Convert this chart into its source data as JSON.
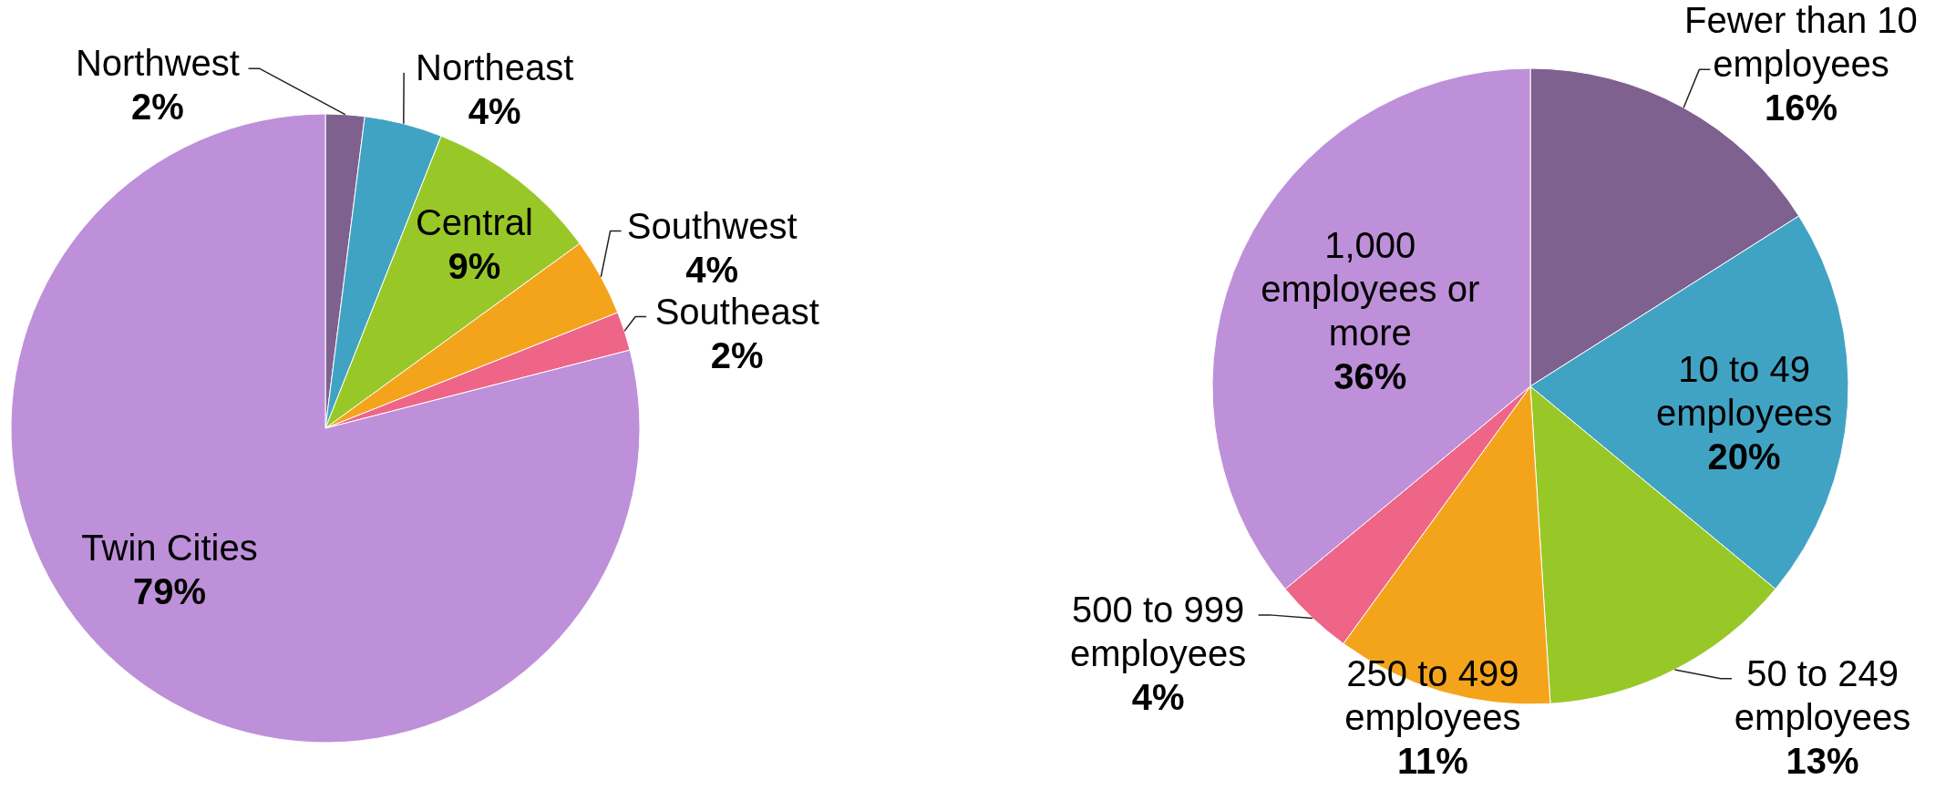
{
  "chart_data": [
    {
      "type": "pie",
      "categories": [
        "Northwest",
        "Northeast",
        "Central",
        "Southwest",
        "Southeast",
        "Twin Cities"
      ],
      "values": [
        2,
        4,
        9,
        4,
        2,
        79
      ],
      "value_labels": [
        "2%",
        "4%",
        "9%",
        "4%",
        "2%",
        "79%"
      ],
      "colors": [
        "#7f6190",
        "#41a3c3",
        "#98c828",
        "#f4a41b",
        "#ef6587",
        "#be90d9"
      ]
    },
    {
      "type": "pie",
      "categories": [
        "Fewer than 10 employees",
        "10 to 49 employees",
        "50 to 249 employees",
        "250 to 499 employees",
        "500 to 999 employees",
        "1,000 employees or more"
      ],
      "values": [
        16,
        20,
        13,
        11,
        4,
        36
      ],
      "value_labels": [
        "16%",
        "20%",
        "13%",
        "11%",
        "4%",
        "36%"
      ],
      "colors": [
        "#7f6190",
        "#41a3c3",
        "#98c828",
        "#f4a41b",
        "#ef6587",
        "#be90d9"
      ]
    }
  ]
}
